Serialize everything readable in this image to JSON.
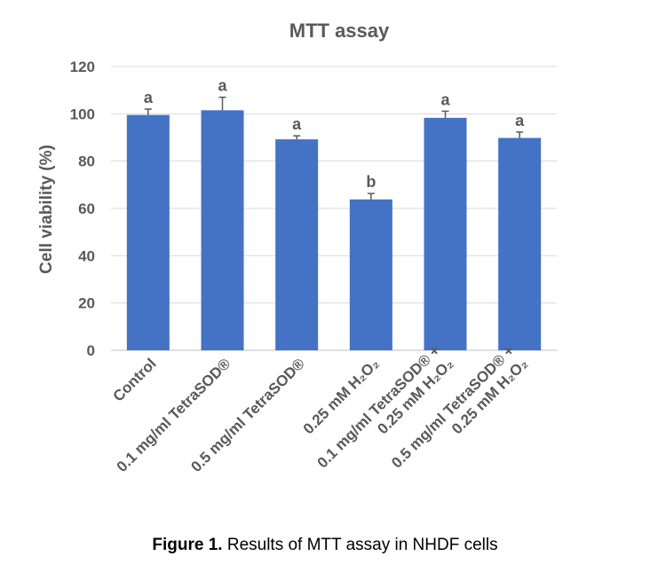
{
  "chart_data": {
    "type": "bar",
    "title": "MTT assay",
    "ylabel": "Cell viability (%)",
    "ylim": [
      0,
      120
    ],
    "yticks": [
      0,
      20,
      40,
      60,
      80,
      100,
      120
    ],
    "grid": true,
    "categories": [
      [
        "Control"
      ],
      [
        "0.1 mg/ml TetraSOD®"
      ],
      [
        "0.5 mg/ml TetraSOD®"
      ],
      [
        "0.25 mM H₂O₂"
      ],
      [
        "0.1 mg/ml TetraSOD® +",
        "0.25 mM H₂O₂"
      ],
      [
        "0.5 mg/ml TetraSOD® +",
        "0.25 mM H₂O₂"
      ]
    ],
    "values": [
      99.5,
      101.5,
      89.2,
      63.8,
      98.3,
      89.8
    ],
    "errors": [
      2.5,
      5.5,
      1.5,
      2.5,
      2.8,
      2.5
    ],
    "significance": [
      "a",
      "a",
      "a",
      "b",
      "a",
      "a"
    ],
    "bar_color": "#4472c4"
  },
  "caption": {
    "label": "Figure 1.",
    "text": " Results of MTT assay in NHDF cells"
  }
}
